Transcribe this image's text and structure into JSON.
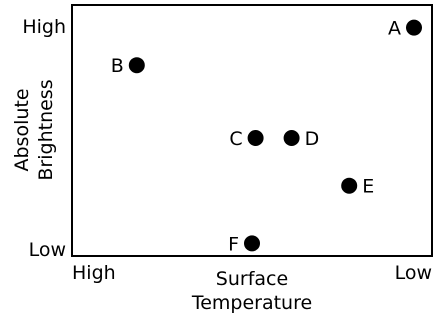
{
  "chart_data": {
    "type": "scatter",
    "title": "",
    "xlabel": [
      "Surface",
      "Temperature"
    ],
    "ylabel": [
      "Absolute",
      "Brightness"
    ],
    "x_tick_labels": {
      "left": "High",
      "right": "Low"
    },
    "y_tick_labels": {
      "top": "High",
      "bottom": "Low"
    },
    "x_direction": "decreasing",
    "xlim": [
      0,
      1
    ],
    "ylim": [
      0,
      1
    ],
    "grid": false,
    "legend": "none",
    "points": [
      {
        "label": "A",
        "x": 0.95,
        "y": 0.91,
        "label_side": "left"
      },
      {
        "label": "B",
        "x": 0.18,
        "y": 0.76,
        "label_side": "left"
      },
      {
        "label": "C",
        "x": 0.51,
        "y": 0.47,
        "label_side": "left"
      },
      {
        "label": "D",
        "x": 0.61,
        "y": 0.47,
        "label_side": "right"
      },
      {
        "label": "E",
        "x": 0.77,
        "y": 0.28,
        "label_side": "right"
      },
      {
        "label": "F",
        "x": 0.5,
        "y": 0.05,
        "label_side": "left"
      }
    ],
    "point_color": "#000000"
  }
}
